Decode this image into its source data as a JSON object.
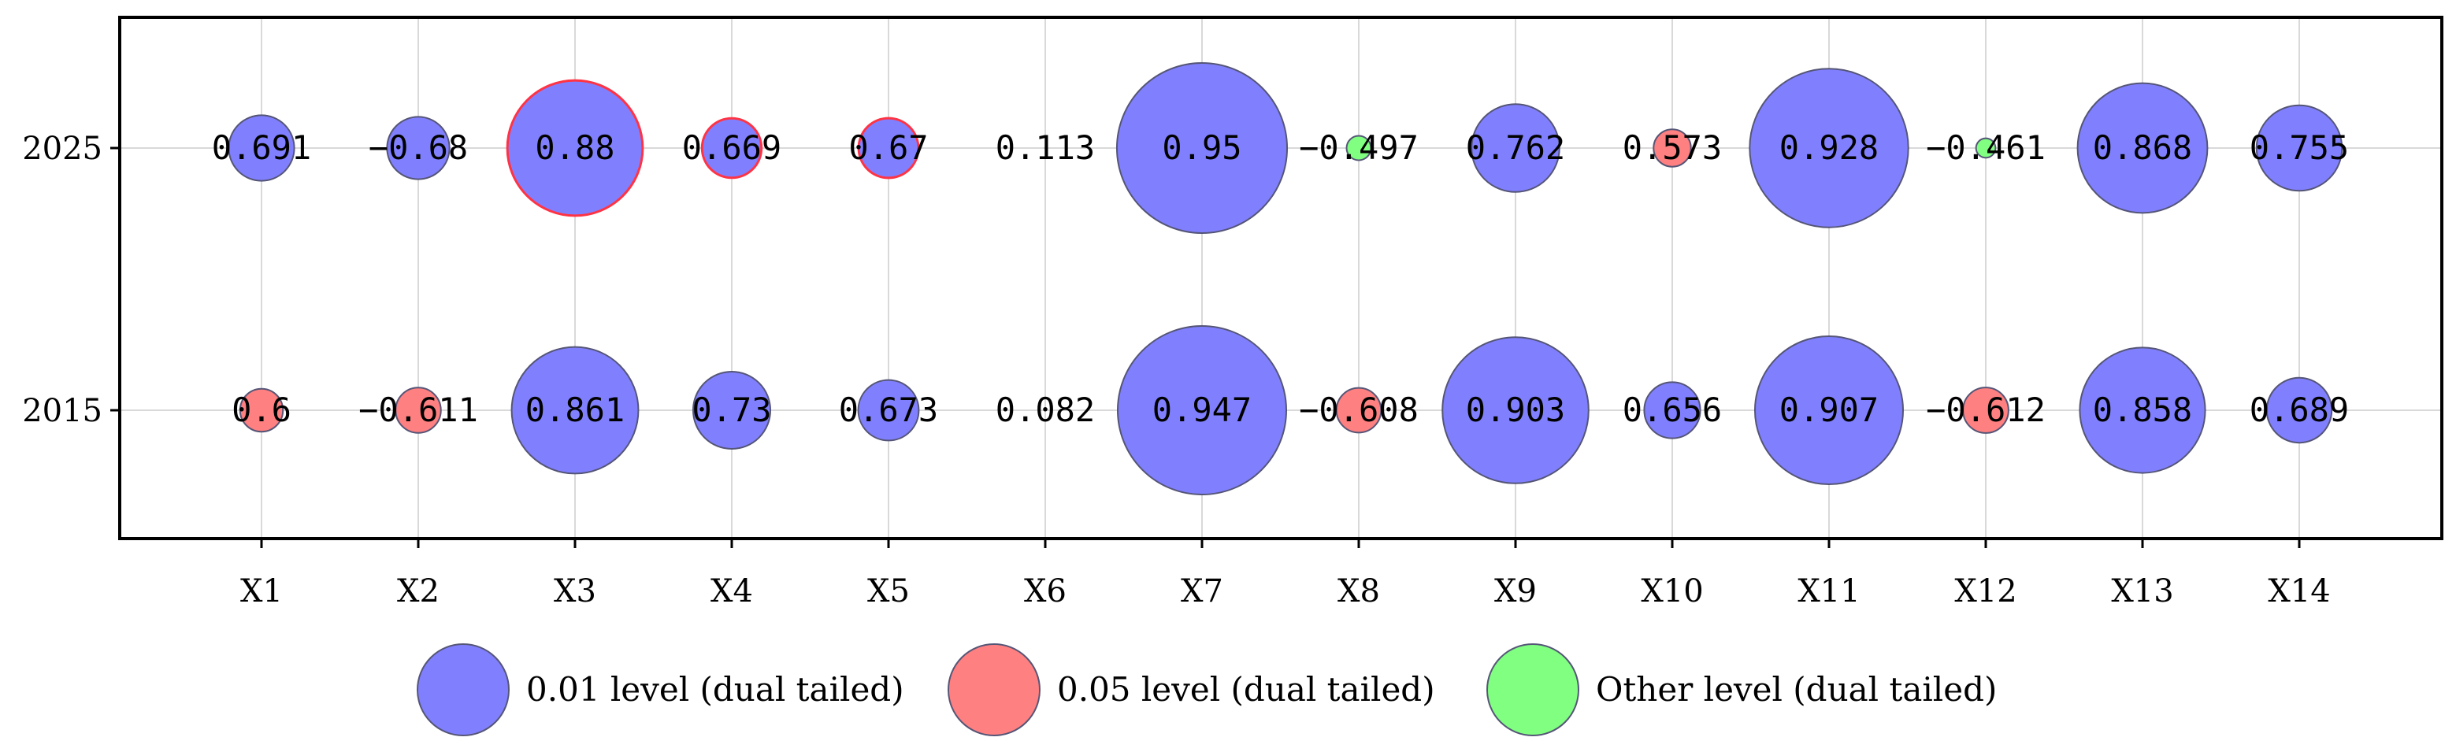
{
  "chart_data": {
    "type": "bubble",
    "categories": [
      "X1",
      "X2",
      "X3",
      "X4",
      "X5",
      "X6",
      "X7",
      "X8",
      "X9",
      "X10",
      "X11",
      "X12",
      "X13",
      "X14"
    ],
    "rows": [
      "2025",
      "2015"
    ],
    "series": [
      {
        "row": "2025",
        "values": [
          0.691,
          -0.68,
          0.88,
          0.669,
          0.67,
          0.113,
          0.95,
          -0.497,
          0.762,
          0.573,
          0.928,
          -0.461,
          0.868,
          0.755
        ],
        "labels": [
          "0.691",
          "−0.68",
          "0.88",
          "0.669",
          "0.67",
          "0.113",
          "0.95",
          "−0.497",
          "0.762",
          "0.573",
          "0.928",
          "−0.461",
          "0.868",
          "0.755"
        ],
        "levels": [
          "0.01",
          "0.01",
          "0.01",
          "0.01",
          "0.01",
          "other",
          "0.01",
          "other",
          "0.01",
          "0.05",
          "0.01",
          "other",
          "0.01",
          "0.01"
        ],
        "highlight": [
          false,
          false,
          true,
          true,
          true,
          false,
          false,
          false,
          false,
          false,
          false,
          false,
          false,
          false
        ]
      },
      {
        "row": "2015",
        "values": [
          0.6,
          -0.611,
          0.861,
          0.73,
          0.673,
          0.082,
          0.947,
          -0.608,
          0.903,
          0.656,
          0.907,
          -0.612,
          0.858,
          0.689
        ],
        "labels": [
          "0.6",
          "−0.611",
          "0.861",
          "0.73",
          "0.673",
          "0.082",
          "0.947",
          "−0.608",
          "0.903",
          "0.656",
          "0.907",
          "−0.612",
          "0.858",
          "0.689"
        ],
        "levels": [
          "0.05",
          "0.05",
          "0.01",
          "0.01",
          "0.01",
          "other",
          "0.01",
          "0.05",
          "0.01",
          "0.01",
          "0.01",
          "0.05",
          "0.01",
          "0.01"
        ],
        "highlight": [
          false,
          false,
          false,
          false,
          false,
          false,
          false,
          false,
          false,
          false,
          false,
          false,
          false,
          false
        ]
      }
    ],
    "legend": [
      {
        "level": "0.01",
        "label": "0.01 level (dual tailed)",
        "color": "#8080ff"
      },
      {
        "level": "0.05",
        "label": "0.05 level (dual tailed)",
        "color": "#ff8080"
      },
      {
        "level": "other",
        "label": "Other level (dual tailed)",
        "color": "#80ff80"
      }
    ],
    "bubble_stroke": "#555577",
    "highlight_stroke": "#ff3344",
    "legend_position": "bottom"
  }
}
